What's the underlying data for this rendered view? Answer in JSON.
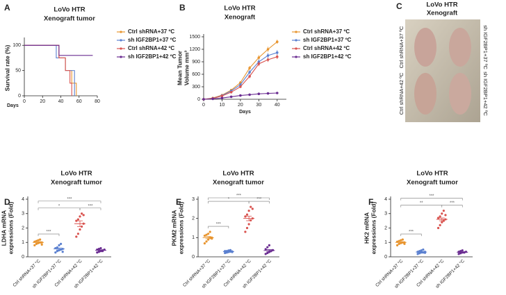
{
  "chart_data": [
    {
      "type": "step",
      "panel": "A",
      "title": [
        "LoVo HTR",
        "Xenograft tumor"
      ],
      "ylabel": [
        "Survival rate (%)"
      ],
      "xlabel": "Days",
      "xlim": [
        0,
        80
      ],
      "ylim": [
        0,
        110
      ],
      "xticks": [
        0,
        20,
        40,
        60,
        80
      ],
      "yticks": [
        0,
        50,
        100
      ],
      "series": [
        {
          "name": "Ctrl shRNA+37 ºC",
          "color": "#e8952f",
          "x": [
            0,
            38,
            45,
            52,
            57
          ],
          "values": [
            100,
            75,
            50,
            25,
            0
          ]
        },
        {
          "name": "sh IGF2BP1+37 ºC",
          "color": "#5b80d0",
          "x": [
            0,
            35,
            45,
            55
          ],
          "values": [
            100,
            75,
            50,
            0
          ]
        },
        {
          "name": "Ctrl shRNA+42 ºC",
          "color": "#d9534f",
          "x": [
            0,
            38,
            45,
            50,
            52
          ],
          "values": [
            100,
            75,
            50,
            25,
            0
          ]
        },
        {
          "name": "sh IGF2BP1+42 ºC",
          "color": "#6a2c91",
          "x": [
            0,
            38,
            75
          ],
          "values": [
            100,
            80,
            80
          ]
        }
      ]
    },
    {
      "type": "line",
      "panel": "B",
      "title": [
        "LoVo HTR",
        "Xenograft"
      ],
      "ylabel": [
        "Mean Tumor",
        "Volume mm³"
      ],
      "xlabel": "Days",
      "xlim": [
        0,
        45
      ],
      "ylim": [
        0,
        1500
      ],
      "xticks": [
        0,
        10,
        20,
        30,
        40
      ],
      "yticks": [
        0,
        300,
        600,
        900,
        1200,
        1500
      ],
      "x": [
        0,
        5,
        10,
        15,
        20,
        25,
        30,
        35,
        40
      ],
      "series": [
        {
          "name": "Ctrl shRNA+37 ºC",
          "color": "#e8952f",
          "values": [
            0,
            30,
            100,
            220,
            400,
            750,
            1000,
            1200,
            1380
          ],
          "errors": [
            0,
            8,
            15,
            25,
            35,
            50,
            60,
            60,
            50
          ]
        },
        {
          "name": "sh IGF2BP1+37 ºC",
          "color": "#5b80d0",
          "values": [
            0,
            25,
            90,
            200,
            350,
            650,
            900,
            1050,
            1120
          ],
          "errors": [
            0,
            8,
            15,
            25,
            35,
            50,
            60,
            60,
            60
          ]
        },
        {
          "name": "Ctrl shRNA+42 ºC",
          "color": "#d9534f",
          "values": [
            0,
            20,
            80,
            170,
            300,
            550,
            850,
            950,
            1020
          ],
          "errors": [
            0,
            8,
            15,
            20,
            30,
            45,
            55,
            55,
            55
          ]
        },
        {
          "name": "sh IGF2BP1+42 ºC",
          "color": "#6a2c91",
          "values": [
            0,
            10,
            30,
            60,
            90,
            110,
            130,
            140,
            150
          ],
          "errors": [
            0,
            4,
            6,
            8,
            10,
            10,
            12,
            12,
            15
          ]
        }
      ]
    },
    {
      "type": "dot",
      "panel": "D",
      "title": [
        "LoVo HTR",
        "Xenograft tumor"
      ],
      "ylabel": [
        "LDHA mRNA",
        "expressions (Fold)"
      ],
      "ylim": [
        0,
        4
      ],
      "yticks": [
        0,
        1,
        2,
        3,
        4
      ],
      "categories": [
        "Ctrl shRNA+37 °C",
        "sh IGF2BP1+37 °C",
        "Ctrl shRNA+42 °C",
        "sh IGF2BP1+42 °C"
      ],
      "colors": [
        "#e8952f",
        "#5b80d0",
        "#d9534f",
        "#6a2c91"
      ],
      "points": [
        [
          0.8,
          0.9,
          0.95,
          1.0,
          1.0,
          1.05,
          1.1,
          1.15,
          1.2,
          0.85
        ],
        [
          0.3,
          0.4,
          0.45,
          0.5,
          0.55,
          0.6,
          0.65,
          0.8,
          0.9,
          0.35
        ],
        [
          1.4,
          1.6,
          1.9,
          2.1,
          2.3,
          2.5,
          2.6,
          2.8,
          3.0,
          2.9
        ],
        [
          0.3,
          0.35,
          0.4,
          0.45,
          0.5,
          0.5,
          0.55,
          0.6,
          0.4
        ]
      ],
      "means": [
        1.0,
        0.55,
        2.3,
        0.45
      ],
      "sems": [
        0.05,
        0.07,
        0.2,
        0.04
      ],
      "comparisons": [
        {
          "groups": [
            0,
            1
          ],
          "label": "***"
        },
        {
          "groups": [
            2,
            3
          ],
          "label": "***"
        },
        {
          "groups": [
            0,
            2
          ],
          "label": "*"
        },
        {
          "groups": [
            0,
            3
          ],
          "label": "***"
        }
      ]
    },
    {
      "type": "dot",
      "panel": "E",
      "title": [
        "LoVo HTR",
        "Xenograft tumor"
      ],
      "ylabel": [
        "PKM2 mRNA",
        "expressions (Fold)"
      ],
      "ylim": [
        0,
        3
      ],
      "yticks": [
        0,
        1,
        2,
        3
      ],
      "categories": [
        "Ctrl shRNA+37 °C",
        "sh IGF2BP1+37 °C",
        "Ctrl shRNA+42 °C",
        "sh IGF2BP1+42 °C"
      ],
      "colors": [
        "#e8952f",
        "#5b80d0",
        "#d9534f",
        "#6a2c91"
      ],
      "points": [
        [
          0.7,
          0.8,
          0.9,
          1.0,
          1.0,
          1.1,
          1.15,
          1.2,
          1.3,
          0.95
        ],
        [
          0.2,
          0.22,
          0.25,
          0.27,
          0.28,
          0.3,
          0.3,
          0.33,
          0.35,
          0.25
        ],
        [
          1.3,
          1.5,
          1.7,
          1.9,
          2.0,
          2.1,
          2.2,
          2.4,
          2.6,
          2.5
        ],
        [
          0.15,
          0.2,
          0.25,
          0.3,
          0.35,
          0.4,
          0.5,
          0.6,
          0.3
        ]
      ],
      "means": [
        1.0,
        0.27,
        2.0,
        0.33
      ],
      "sems": [
        0.06,
        0.02,
        0.12,
        0.05
      ],
      "comparisons": [
        {
          "groups": [
            0,
            1
          ],
          "label": "***"
        },
        {
          "groups": [
            2,
            3
          ],
          "label": "***"
        },
        {
          "groups": [
            0,
            2
          ],
          "label": "*"
        },
        {
          "groups": [
            0,
            3
          ],
          "label": "***"
        }
      ]
    },
    {
      "type": "dot",
      "panel": "F",
      "title": [
        "LoVo HTR",
        "Xenograft tumor"
      ],
      "ylabel": [
        "HK2 mRNA",
        "expressions (Fold)"
      ],
      "ylim": [
        0,
        4
      ],
      "yticks": [
        0,
        1,
        2,
        3,
        4
      ],
      "categories": [
        "Ctrl shRNA+37 °C",
        "sh IGF2BP1+37 °C",
        "Ctrl shRNA+42 °C",
        "sh IGF2BP1+42 °C"
      ],
      "colors": [
        "#e8952f",
        "#5b80d0",
        "#d9534f",
        "#6a2c91"
      ],
      "points": [
        [
          0.8,
          0.9,
          0.95,
          1.0,
          1.0,
          1.05,
          1.1,
          1.15,
          1.2,
          0.9
        ],
        [
          0.2,
          0.25,
          0.3,
          0.3,
          0.35,
          0.35,
          0.4,
          0.45,
          0.5,
          0.28
        ],
        [
          2.0,
          2.2,
          2.4,
          2.5,
          2.6,
          2.7,
          2.8,
          3.0,
          3.2,
          2.9
        ],
        [
          0.2,
          0.25,
          0.3,
          0.3,
          0.35,
          0.35,
          0.4,
          0.45,
          0.3
        ]
      ],
      "means": [
        1.0,
        0.33,
        2.6,
        0.32
      ],
      "sems": [
        0.05,
        0.04,
        0.1,
        0.03
      ],
      "comparisons": [
        {
          "groups": [
            0,
            1
          ],
          "label": "***"
        },
        {
          "groups": [
            2,
            3
          ],
          "label": "***"
        },
        {
          "groups": [
            0,
            2
          ],
          "label": "**"
        },
        {
          "groups": [
            0,
            3
          ],
          "label": "***"
        }
      ]
    }
  ],
  "photo": {
    "panel": "C",
    "title": [
      "LoVo HTR",
      "Xenograft"
    ],
    "labels": [
      "Ctrl shRNA+37 ºC",
      "sh IGF2BP1+37 ºC",
      "Ctrl shRNA+42 ºC",
      "sh IGF2BP1+42 ºC"
    ],
    "label_colors": [
      "#e8952f",
      "#5b80d0",
      "#d9534f",
      "#6a2c91"
    ]
  }
}
